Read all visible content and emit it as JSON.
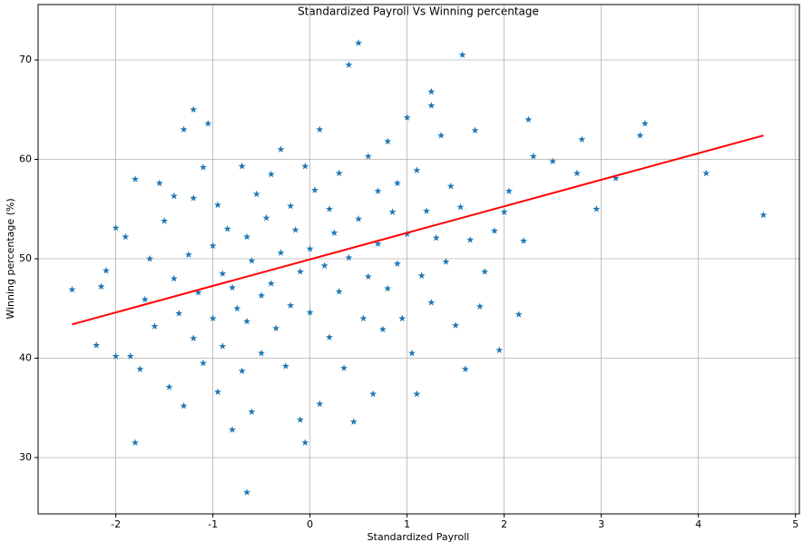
{
  "chart_data": {
    "type": "scatter",
    "title": "Standardized Payroll Vs Winning percentage",
    "x_label": "Standardized Payroll",
    "y_label": "Winning percentage (%)",
    "xlim": [
      -2.8,
      5.04
    ],
    "ylim": [
      24.34,
      75.57
    ],
    "xticks": [
      -2,
      -1,
      0,
      1,
      2,
      3,
      4,
      5
    ],
    "yticks": [
      30,
      40,
      50,
      60,
      70
    ],
    "grid": true,
    "marker": "star",
    "series": [
      {
        "color": "#1f77b4",
        "x": [
          -2.45,
          -2.2,
          -2.15,
          -2.1,
          -2.0,
          -2.0,
          -1.9,
          -1.85,
          -1.8,
          -1.75,
          -1.7,
          -1.65,
          -1.6,
          -1.55,
          -1.5,
          -1.45,
          -1.4,
          -1.4,
          -1.35,
          -1.3,
          -1.3,
          -1.25,
          -1.2,
          -1.2,
          -1.15,
          -1.1,
          -1.1,
          -1.05,
          -1.0,
          -1.0,
          -0.95,
          -0.95,
          -0.9,
          -0.9,
          -0.85,
          -0.8,
          -0.8,
          -0.75,
          -0.7,
          -0.7,
          -0.65,
          -0.65,
          -0.6,
          -0.6,
          -0.55,
          -0.5,
          -0.5,
          -0.45,
          -0.4,
          -0.4,
          -0.35,
          -0.3,
          -0.3,
          -0.25,
          -0.2,
          -0.2,
          -0.15,
          -0.1,
          -0.1,
          -0.05,
          -0.05,
          0.0,
          0.0,
          0.05,
          0.1,
          0.1,
          0.15,
          0.2,
          0.2,
          0.25,
          0.3,
          0.3,
          0.35,
          0.4,
          0.4,
          0.45,
          0.5,
          0.5,
          0.55,
          0.6,
          0.6,
          0.65,
          0.7,
          0.7,
          0.75,
          0.8,
          0.8,
          0.85,
          0.9,
          0.9,
          0.95,
          1.0,
          1.0,
          1.05,
          1.1,
          1.1,
          1.15,
          1.2,
          1.25,
          1.25,
          1.3,
          1.35,
          1.4,
          1.45,
          1.5,
          1.55,
          1.57,
          1.6,
          1.65,
          1.7,
          1.75,
          1.8,
          1.9,
          1.95,
          2.0,
          2.05,
          2.15,
          2.2,
          2.25,
          2.3,
          2.5,
          2.75,
          2.8,
          2.95,
          3.15,
          3.4,
          3.45,
          4.08,
          4.67,
          -0.65,
          -1.2,
          1.25,
          -1.8
        ],
        "values": [
          46.9,
          41.3,
          47.2,
          48.8,
          53.1,
          40.2,
          52.2,
          40.2,
          58.0,
          38.9,
          45.9,
          50.0,
          43.2,
          57.6,
          53.8,
          37.1,
          56.3,
          48.0,
          44.5,
          63.0,
          35.2,
          50.4,
          42.0,
          56.1,
          46.6,
          59.2,
          39.5,
          63.6,
          51.3,
          44.0,
          55.4,
          36.6,
          48.5,
          41.2,
          53.0,
          32.8,
          47.1,
          45.0,
          59.3,
          38.7,
          52.2,
          43.7,
          49.8,
          34.6,
          56.5,
          46.3,
          40.5,
          54.1,
          47.5,
          58.5,
          43.0,
          50.6,
          61.0,
          39.2,
          55.3,
          45.3,
          52.9,
          33.8,
          48.7,
          59.3,
          31.5,
          51.0,
          44.6,
          56.9,
          63.0,
          35.4,
          49.3,
          42.1,
          55.0,
          52.6,
          46.7,
          58.6,
          39.0,
          69.5,
          50.1,
          33.6,
          71.7,
          54.0,
          44.0,
          60.3,
          48.2,
          36.4,
          56.8,
          51.5,
          42.9,
          61.8,
          47.0,
          54.7,
          49.5,
          57.6,
          44.0,
          64.2,
          52.5,
          40.5,
          58.9,
          36.4,
          48.3,
          54.8,
          66.8,
          45.6,
          52.1,
          62.4,
          49.7,
          57.3,
          43.3,
          55.2,
          70.5,
          38.9,
          51.9,
          62.9,
          45.2,
          48.7,
          52.8,
          40.8,
          54.7,
          56.8,
          44.4,
          51.8,
          64.0,
          60.3,
          59.8,
          58.6,
          62.0,
          55.0,
          58.1,
          62.4,
          63.6,
          58.6,
          54.4,
          26.5,
          65.0,
          65.4,
          31.5
        ]
      }
    ],
    "fit_line": {
      "color": "#ff0000",
      "x": [
        -2.45,
        4.67
      ],
      "values": [
        43.4,
        62.4
      ]
    }
  }
}
